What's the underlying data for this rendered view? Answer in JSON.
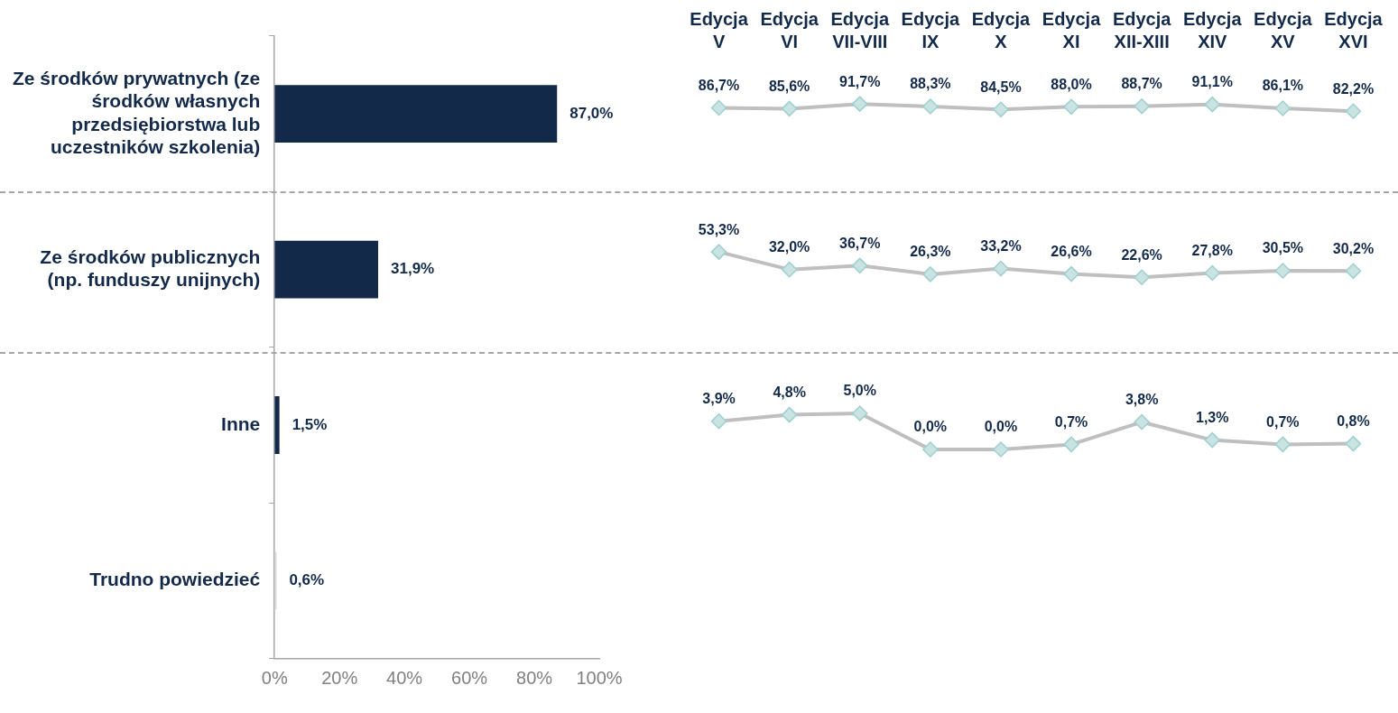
{
  "chart_data": [
    {
      "type": "bar",
      "orientation": "horizontal",
      "categories": [
        "Ze środków prywatnych (ze środków własnych przedsiębiorstwa lub uczestników szkolenia)",
        "Ze środków publicznych (np. funduszy unijnych)",
        "Inne",
        "Trudno powiedzieć"
      ],
      "values": [
        87.0,
        31.9,
        1.5,
        0.6
      ],
      "colors": [
        "#12294a",
        "#12294a",
        "#12294a",
        "#d9d9d9"
      ],
      "value_labels": [
        "87,0%",
        "31,9%",
        "1,5%",
        "0,6%"
      ],
      "xlim": [
        0,
        100
      ],
      "xticks": [
        {
          "value": 0,
          "label": "0%"
        },
        {
          "value": 20,
          "label": "20%"
        },
        {
          "value": 40,
          "label": "40%"
        },
        {
          "value": 60,
          "label": "60%"
        },
        {
          "value": 80,
          "label": "80%"
        },
        {
          "value": 100,
          "label": "100%"
        }
      ]
    },
    {
      "type": "line",
      "tick_labels": "x",
      "marker": "diamond",
      "categories": [
        "Edycja V",
        "Edycja VI",
        "Edycja VII-VIII",
        "Edycja IX",
        "Edycja X",
        "Edycja XI",
        "Edycja XII-XIII",
        "Edycja XIV",
        "Edycja XV",
        "Edycja XVI"
      ],
      "series": [
        {
          "color": "#bfbfbf",
          "values": [
            86.7,
            85.6,
            91.7,
            88.3,
            84.5,
            88.0,
            88.7,
            91.1,
            86.1,
            82.2
          ],
          "value_labels": [
            "86,7%",
            "85,6%",
            "91,7%",
            "88,3%",
            "84,5%",
            "88,0%",
            "88,7%",
            "91,1%",
            "86,1%",
            "82,2%"
          ]
        }
      ]
    },
    {
      "type": "line",
      "tick_labels": false,
      "marker": "diamond",
      "categories": [
        null,
        null,
        null,
        null,
        null,
        null,
        null,
        null,
        null,
        null
      ],
      "series": [
        {
          "color": "#bfbfbf",
          "values": [
            53.3,
            32.0,
            36.7,
            26.3,
            33.2,
            26.6,
            22.6,
            27.8,
            30.5,
            30.2
          ],
          "value_labels": [
            "53,3%",
            "32,0%",
            "36,7%",
            "26,3%",
            "33,2%",
            "26,6%",
            "22,6%",
            "27,8%",
            "30,5%",
            "30,2%"
          ]
        }
      ]
    },
    {
      "type": "line",
      "tick_labels": false,
      "marker": "diamond",
      "categories": [
        null,
        null,
        null,
        null,
        null,
        null,
        null,
        null,
        null,
        null
      ],
      "series": [
        {
          "color": "#bfbfbf",
          "values": [
            3.9,
            4.8,
            5.0,
            0.0,
            0.0,
            0.7,
            3.8,
            1.3,
            0.7,
            0.8
          ],
          "value_labels": [
            "3,9%",
            "4,8%",
            "5,0%",
            "0,0%",
            "0,0%",
            "0,7%",
            "3,8%",
            "1,3%",
            "0,7%",
            "0,8%"
          ]
        }
      ]
    }
  ]
}
